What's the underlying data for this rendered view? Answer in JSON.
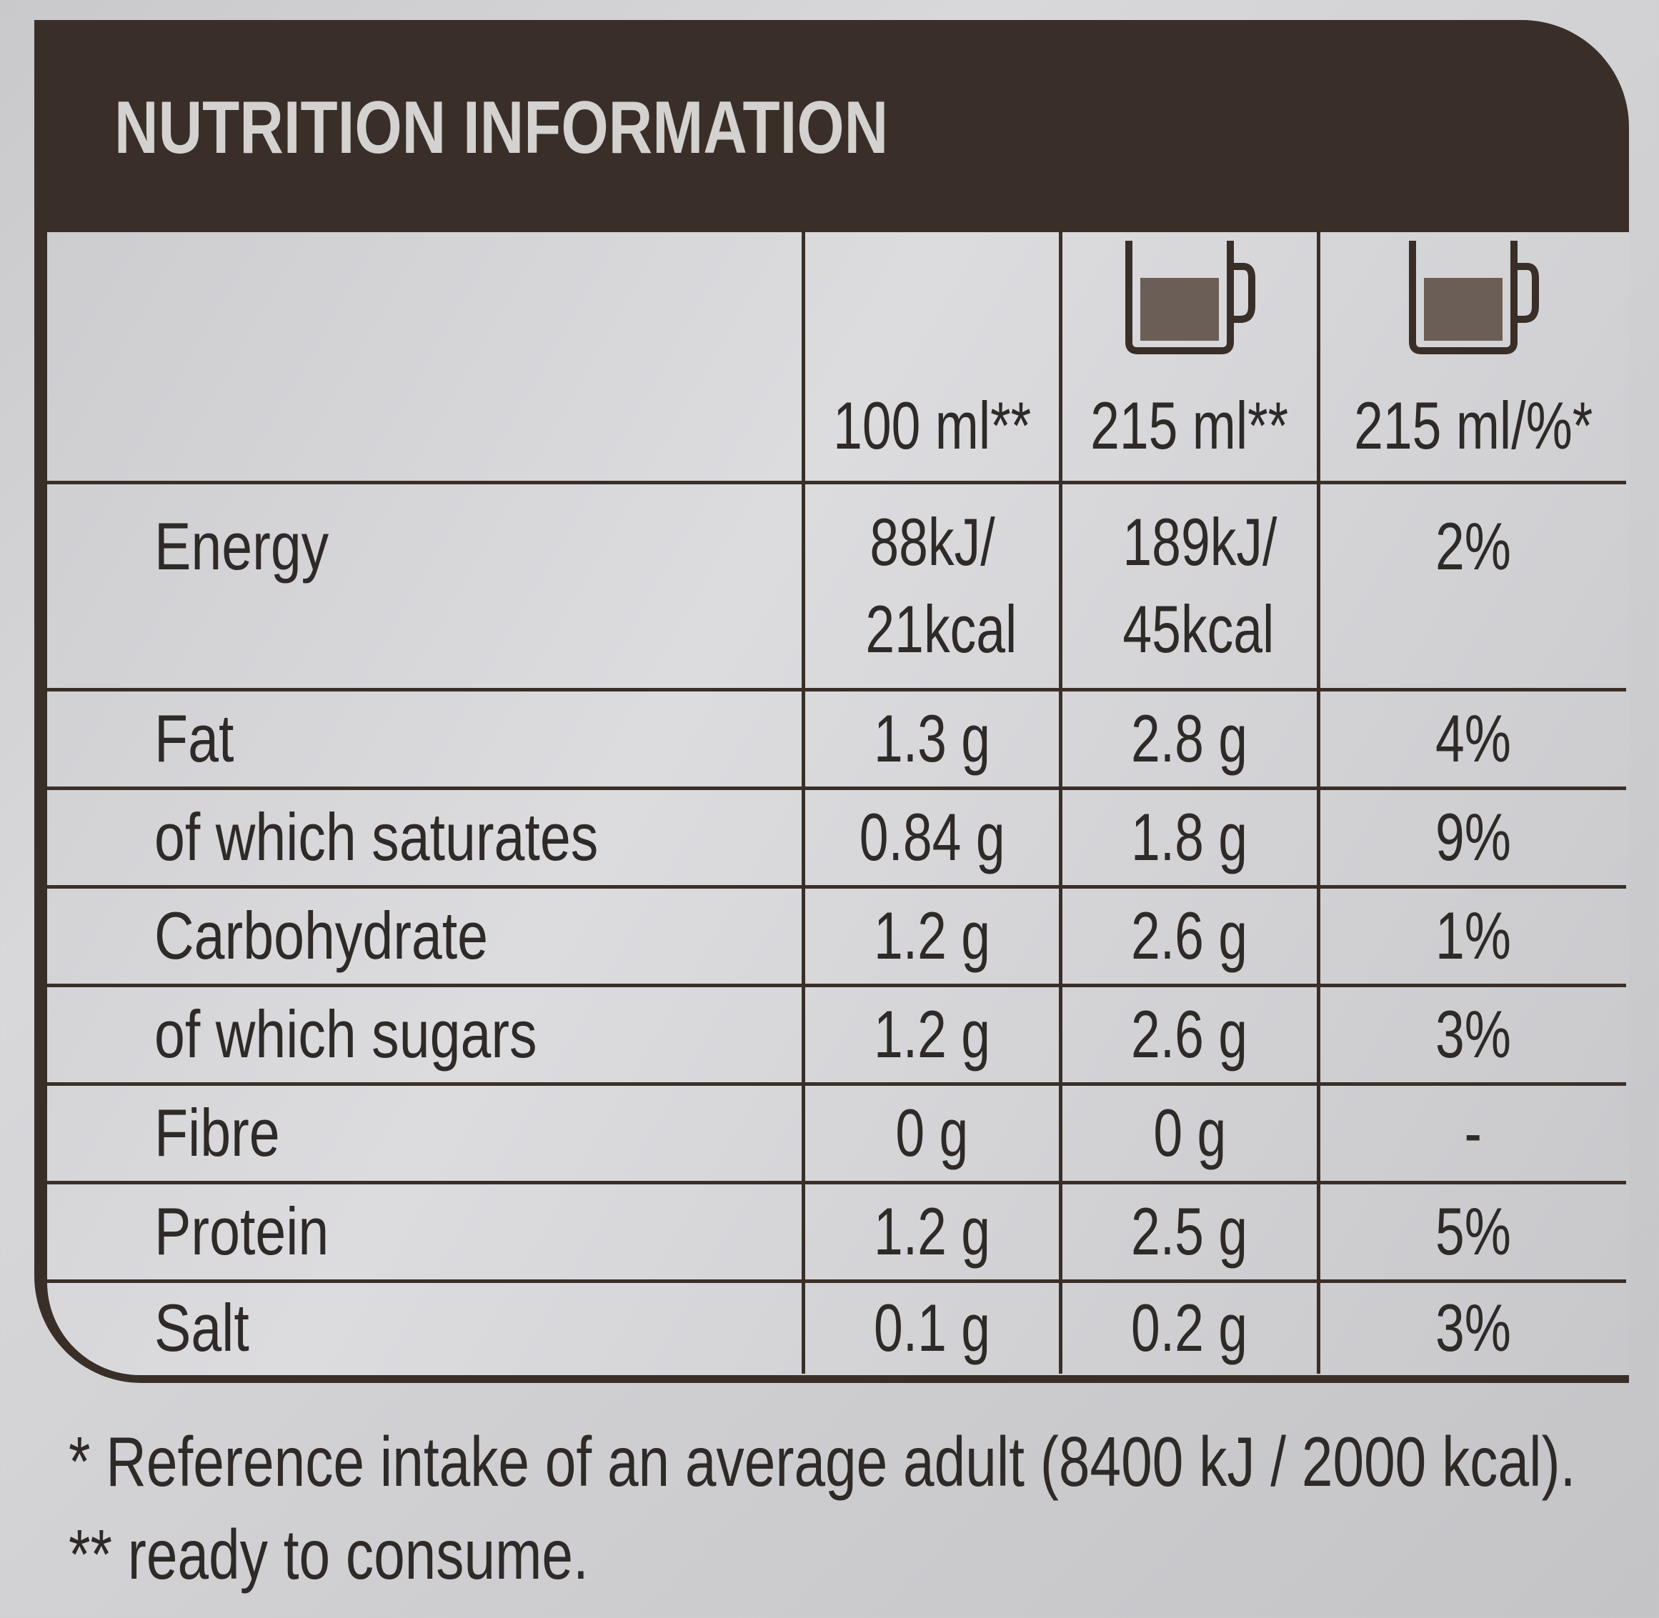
{
  "title": "NUTRITION INFORMATION",
  "columns": [
    "",
    "100 ml**",
    "215 ml**",
    "215 ml/%*"
  ],
  "icons": [
    "mug-icon",
    "mug-icon"
  ],
  "rows": [
    {
      "label": "Energy",
      "per100": "88kJ/ 21kcal",
      "per215": "189kJ/ 45kcal",
      "ri": "2%"
    },
    {
      "label": "Fat",
      "per100": "1.3 g",
      "per215": "2.8 g",
      "ri": "4%"
    },
    {
      "label": "of which saturates",
      "per100": "0.84 g",
      "per215": "1.8 g",
      "ri": "9%"
    },
    {
      "label": "Carbohydrate",
      "per100": "1.2 g",
      "per215": "2.6 g",
      "ri": "1%"
    },
    {
      "label": "of which sugars",
      "per100": "1.2 g",
      "per215": "2.6 g",
      "ri": "3%"
    },
    {
      "label": "Fibre",
      "per100": "0 g",
      "per215": "0 g",
      "ri": "-"
    },
    {
      "label": "Protein",
      "per100": "1.2 g",
      "per215": "2.5 g",
      "ri": "5%"
    },
    {
      "label": "Salt",
      "per100": "0.1 g",
      "per215": "0.2 g",
      "ri": "3%"
    }
  ],
  "footnotes": [
    "* Reference intake of an average adult (8400 kJ / 2000 kcal).",
    "** ready to consume."
  ]
}
